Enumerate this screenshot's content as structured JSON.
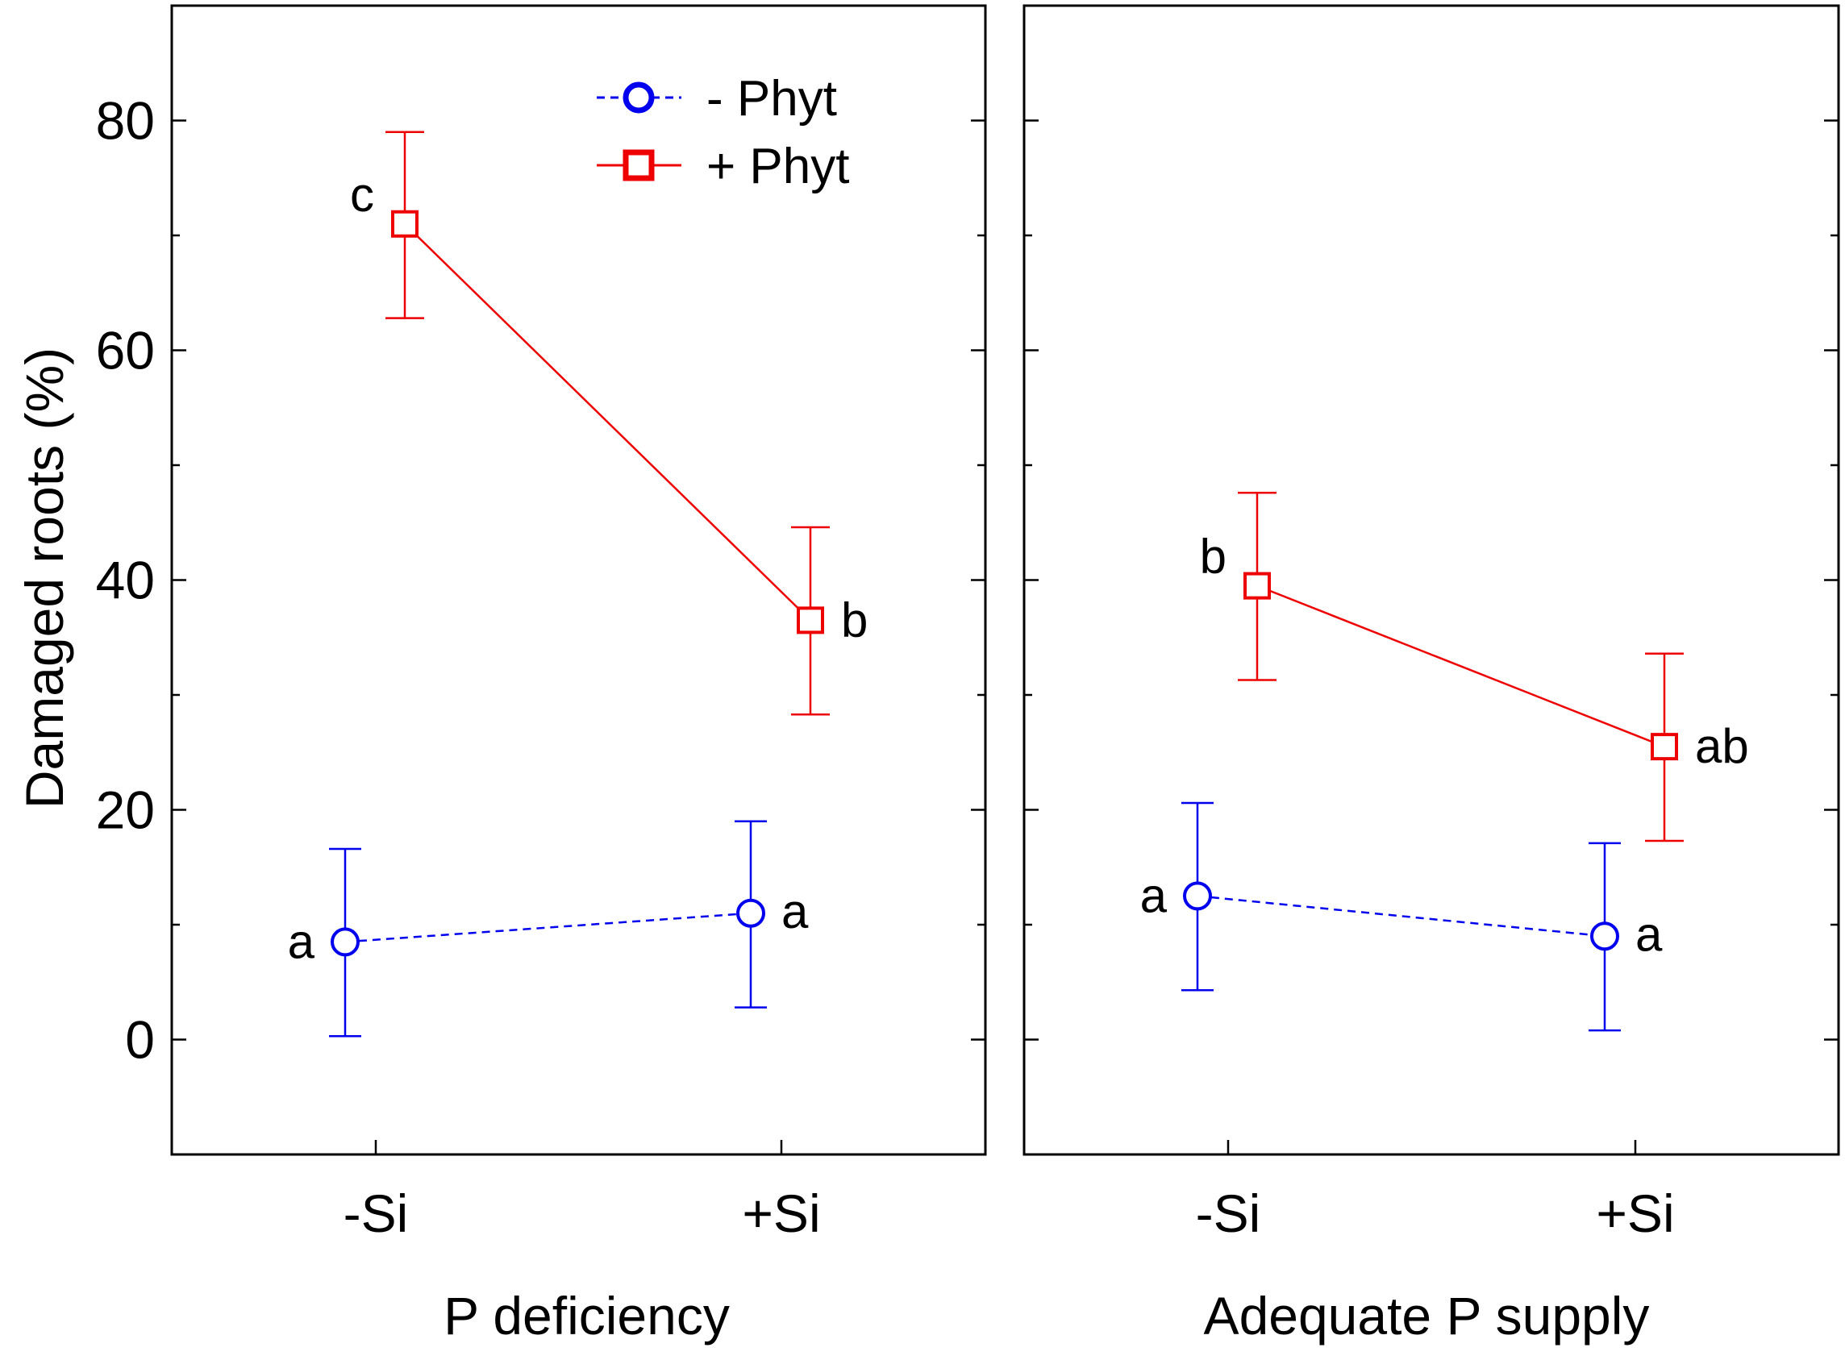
{
  "chart_data": {
    "type": "line",
    "ylabel": "Damaged roots (%)",
    "ylim": [
      -10,
      90
    ],
    "yticks": [
      0,
      20,
      40,
      60,
      80
    ],
    "categories": [
      "-Si",
      "+Si"
    ],
    "legend": {
      "position": "top-right of left panel",
      "entries": [
        {
          "name": "- Phyt",
          "color": "#0000ee",
          "marker": "circle",
          "line": "dashed"
        },
        {
          "name": "+ Phyt",
          "color": "#ee0000",
          "marker": "square",
          "line": "solid"
        }
      ]
    },
    "panels": [
      {
        "title": "P deficiency",
        "series": [
          {
            "name": "- Phyt",
            "values": [
              8.5,
              11
            ],
            "lower": [
              0.3,
              2.8
            ],
            "upper": [
              16.6,
              19
            ],
            "letters": [
              "a",
              "a"
            ]
          },
          {
            "name": "+ Phyt",
            "values": [
              71,
              36.5
            ],
            "lower": [
              62.8,
              28.3
            ],
            "upper": [
              79,
              44.6
            ],
            "letters": [
              "c",
              "b"
            ]
          }
        ]
      },
      {
        "title": "Adequate P supply",
        "series": [
          {
            "name": "- Phyt",
            "values": [
              12.5,
              9
            ],
            "lower": [
              4.3,
              0.8
            ],
            "upper": [
              20.6,
              17.1
            ],
            "letters": [
              "a",
              "a"
            ]
          },
          {
            "name": "+ Phyt",
            "values": [
              39.5,
              25.5
            ],
            "lower": [
              31.3,
              17.3
            ],
            "upper": [
              47.6,
              33.6
            ],
            "letters": [
              "b",
              "ab"
            ]
          }
        ]
      }
    ]
  }
}
